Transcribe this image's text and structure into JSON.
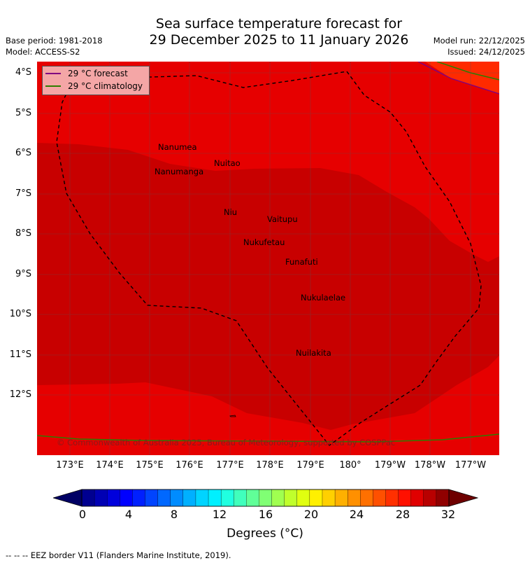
{
  "header": {
    "title_line1": "Sea surface temperature forecast for",
    "title_line2": "29 December 2025 to 11 January 2026",
    "base_period": "Base period: 1981-2018",
    "model": "Model: ACCESS-S2",
    "model_run": "Model run: 22/12/2025",
    "issued": "Issued: 24/12/2025"
  },
  "map": {
    "y_ticks": [
      "4°S",
      "5°S",
      "6°S",
      "7°S",
      "8°S",
      "9°S",
      "10°S",
      "11°S",
      "12°S"
    ],
    "x_ticks": [
      "173°E",
      "174°E",
      "175°E",
      "176°E",
      "177°E",
      "178°E",
      "179°E",
      "180°",
      "179°W",
      "178°W",
      "177°W"
    ],
    "places": [
      "Nanumea",
      "Nuitao",
      "Nanumanga",
      "Niu",
      "Vaitupu",
      "Nukufetau",
      "Funafuti",
      "Nukulaelae",
      "Nuilakita"
    ],
    "copyright": "© Commonwealth of Australia 2025, Bureau of Meteorology, supported by COSPPac",
    "colors": {
      "warm": "#e60000",
      "hot": "#c80000",
      "hotter": "#ff2a00"
    }
  },
  "legend": {
    "forecast_label": "29 °C  forecast",
    "climatology_label": "29 °C  climatology",
    "forecast_color": "#800080",
    "climatology_color": "#2e7d00"
  },
  "colorbar": {
    "ticks": [
      "0",
      "4",
      "8",
      "12",
      "16",
      "20",
      "24",
      "28",
      "32"
    ],
    "label": "Degrees ($^\\circ$C)",
    "label_display": "Degrees (°C)",
    "colors": [
      "#000090",
      "#0000b4",
      "#0000dc",
      "#0000ff",
      "#0020ff",
      "#0044ff",
      "#0068ff",
      "#008cff",
      "#00b0ff",
      "#00d4ff",
      "#00f0ff",
      "#20ffe0",
      "#40ffbc",
      "#60ff98",
      "#80ff74",
      "#a0ff50",
      "#c0ff2c",
      "#e0ff10",
      "#fff000",
      "#ffd000",
      "#ffb000",
      "#ff9000",
      "#ff7000",
      "#ff5000",
      "#ff3000",
      "#ff1000",
      "#e00000",
      "#b80000",
      "#900000"
    ]
  },
  "footer": {
    "eez_note": "--  --  -- EEZ border V11 (Flanders Marine Institute, 2019)."
  }
}
